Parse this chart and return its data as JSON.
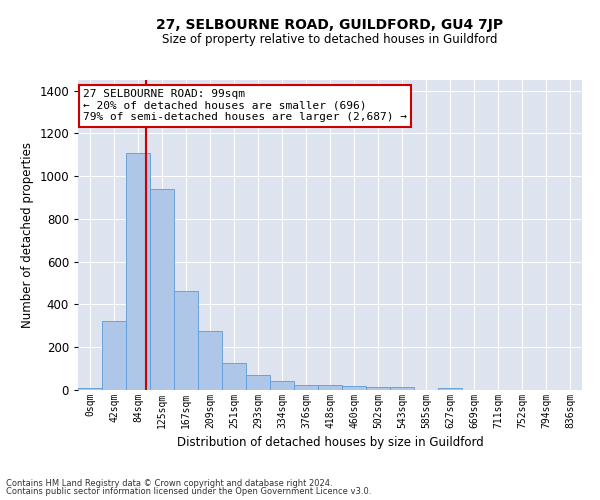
{
  "title": "27, SELBOURNE ROAD, GUILDFORD, GU4 7JP",
  "subtitle": "Size of property relative to detached houses in Guildford",
  "xlabel": "Distribution of detached houses by size in Guildford",
  "ylabel": "Number of detached properties",
  "footnote1": "Contains HM Land Registry data © Crown copyright and database right 2024.",
  "footnote2": "Contains public sector information licensed under the Open Government Licence v3.0.",
  "bar_labels": [
    "0sqm",
    "42sqm",
    "84sqm",
    "125sqm",
    "167sqm",
    "209sqm",
    "251sqm",
    "293sqm",
    "334sqm",
    "376sqm",
    "418sqm",
    "460sqm",
    "502sqm",
    "543sqm",
    "585sqm",
    "627sqm",
    "669sqm",
    "711sqm",
    "752sqm",
    "794sqm",
    "836sqm"
  ],
  "bar_values": [
    10,
    325,
    1110,
    940,
    465,
    275,
    125,
    68,
    40,
    25,
    25,
    18,
    15,
    12,
    0,
    10,
    0,
    0,
    0,
    0,
    0
  ],
  "bar_color": "#aec6e8",
  "bar_edge_color": "#5b9bd5",
  "bg_color": "#dde3ef",
  "red_line_x": 2.35,
  "annotation_text": "27 SELBOURNE ROAD: 99sqm\n← 20% of detached houses are smaller (696)\n79% of semi-detached houses are larger (2,687) →",
  "annotation_box_color": "#ffffff",
  "annotation_border_color": "#cc0000",
  "ylim": [
    0,
    1450
  ],
  "yticks": [
    0,
    200,
    400,
    600,
    800,
    1000,
    1200,
    1400
  ],
  "figsize": [
    6.0,
    5.0
  ],
  "dpi": 100
}
